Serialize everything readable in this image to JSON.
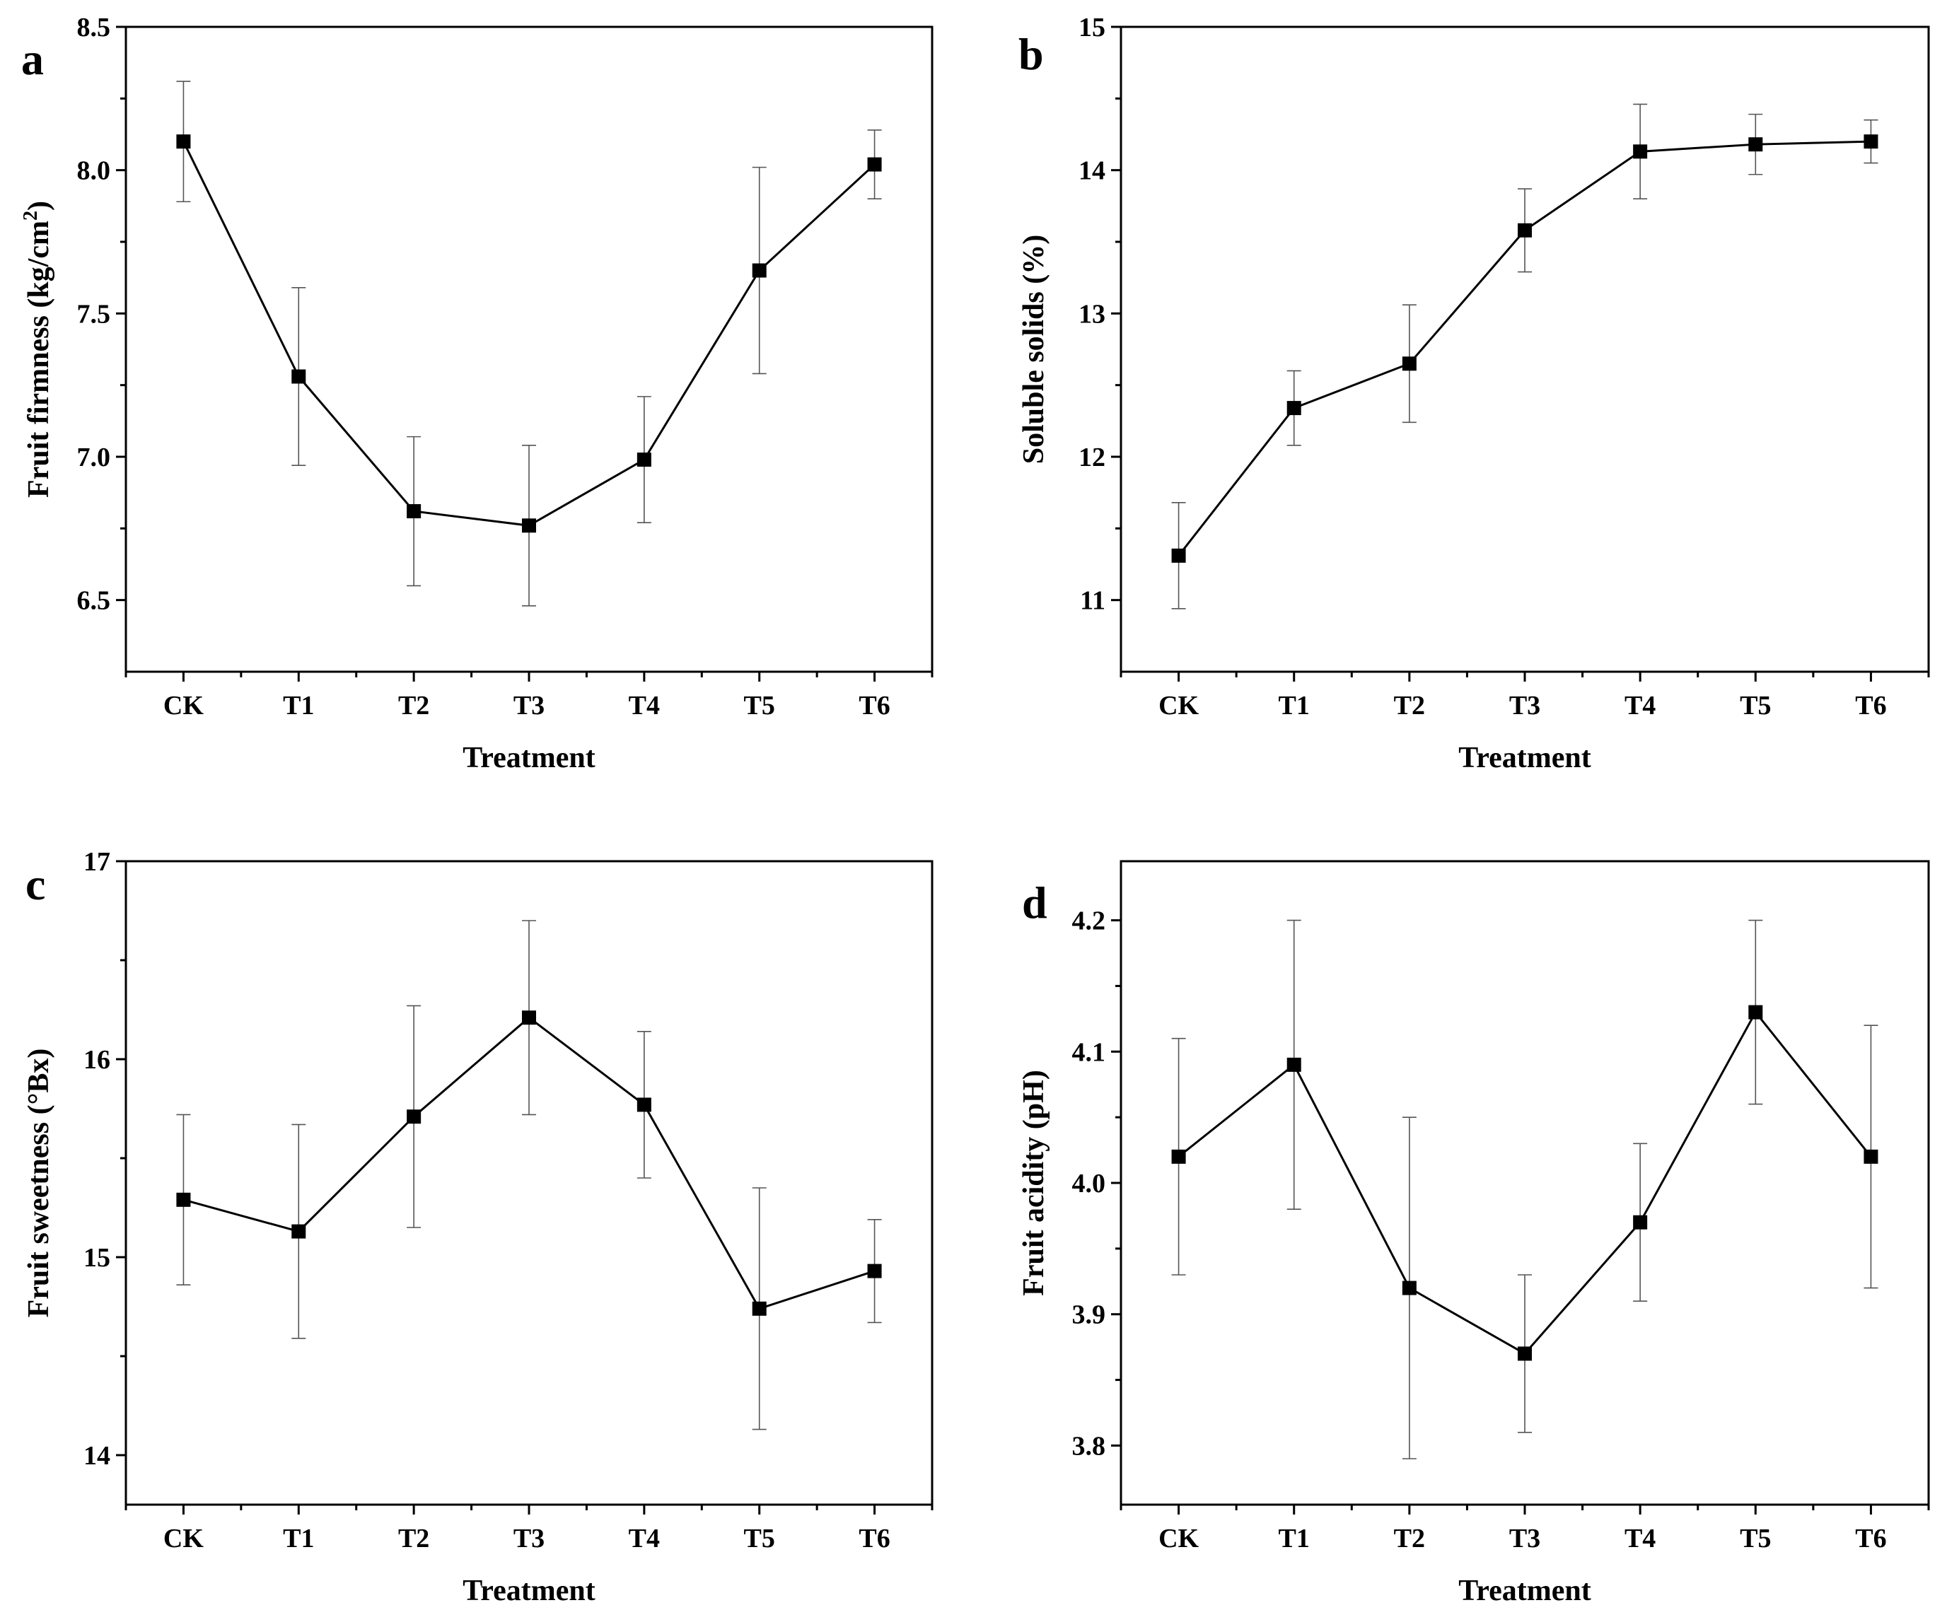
{
  "figure": {
    "panels_count": 4
  },
  "chart_data": [
    {
      "type": "line",
      "panel_letter": "a",
      "xlabel": "Treatment",
      "ylabel_main": "Fruit firmness (kg/cm",
      "ylabel_sup": "2",
      "ylabel_end": ")",
      "categories": [
        "CK",
        "T1",
        "T2",
        "T3",
        "T4",
        "T5",
        "T6"
      ],
      "values": [
        8.1,
        7.28,
        6.81,
        6.76,
        6.99,
        7.65,
        8.02
      ],
      "errors_upper": [
        8.31,
        7.59,
        7.07,
        7.04,
        7.21,
        8.01,
        8.14
      ],
      "errors_lower": [
        7.89,
        6.97,
        6.55,
        6.48,
        6.77,
        7.29,
        7.9
      ],
      "ylim": [
        6.25,
        8.5
      ],
      "yticks": [
        6.5,
        7.0,
        7.5,
        8.0,
        8.5
      ],
      "ytick_labels": [
        "6.5",
        "7.0",
        "7.5",
        "8.0",
        "8.5"
      ],
      "grid": false,
      "marker": "square",
      "color": "#000000"
    },
    {
      "type": "line",
      "panel_letter": "b",
      "xlabel": "Treatment",
      "ylabel_main": "Soluble solids (%)",
      "ylabel_sup": "",
      "ylabel_end": "",
      "categories": [
        "CK",
        "T1",
        "T2",
        "T3",
        "T4",
        "T5",
        "T6"
      ],
      "values": [
        11.31,
        12.34,
        12.65,
        13.58,
        14.13,
        14.18,
        14.2
      ],
      "errors_upper": [
        11.68,
        12.6,
        13.06,
        13.87,
        14.46,
        14.39,
        14.35
      ],
      "errors_lower": [
        10.94,
        12.08,
        12.24,
        13.29,
        13.8,
        13.97,
        14.05
      ],
      "ylim": [
        10.5,
        15.0
      ],
      "yticks": [
        11,
        12,
        13,
        14,
        15
      ],
      "ytick_labels": [
        "11",
        "12",
        "13",
        "14",
        "15"
      ],
      "grid": false,
      "marker": "square",
      "color": "#000000"
    },
    {
      "type": "line",
      "panel_letter": "c",
      "xlabel": "Treatment",
      "ylabel_main": "Fruit sweetness (°Bx)",
      "ylabel_sup": "",
      "ylabel_end": "",
      "categories": [
        "CK",
        "T1",
        "T2",
        "T3",
        "T4",
        "T5",
        "T6"
      ],
      "values": [
        15.29,
        15.13,
        15.71,
        16.21,
        15.77,
        14.74,
        14.93
      ],
      "errors_upper": [
        15.72,
        15.67,
        16.27,
        16.7,
        16.14,
        15.35,
        15.19
      ],
      "errors_lower": [
        14.86,
        14.59,
        15.15,
        15.72,
        15.4,
        14.13,
        14.67
      ],
      "ylim": [
        13.75,
        17.0
      ],
      "yticks": [
        14,
        15,
        16,
        17
      ],
      "ytick_labels": [
        "14",
        "15",
        "16",
        "17"
      ],
      "grid": false,
      "marker": "square",
      "color": "#000000"
    },
    {
      "type": "line",
      "panel_letter": "d",
      "xlabel": "Treatment",
      "ylabel_main": "Fruit acidity (pH)",
      "ylabel_sup": "",
      "ylabel_end": "",
      "categories": [
        "CK",
        "T1",
        "T2",
        "T3",
        "T4",
        "T5",
        "T6"
      ],
      "values": [
        4.02,
        4.09,
        3.92,
        3.87,
        3.97,
        4.13,
        4.02
      ],
      "errors_upper": [
        4.11,
        4.2,
        4.05,
        3.93,
        4.03,
        4.2,
        4.12
      ],
      "errors_lower": [
        3.93,
        3.98,
        3.79,
        3.81,
        3.91,
        4.06,
        3.92
      ],
      "ylim": [
        3.755,
        4.245
      ],
      "yticks": [
        3.8,
        3.9,
        4.0,
        4.1,
        4.2
      ],
      "ytick_labels": [
        "3.8",
        "3.9",
        "4.0",
        "4.1",
        "4.2"
      ],
      "grid": false,
      "marker": "square",
      "color": "#000000"
    }
  ]
}
